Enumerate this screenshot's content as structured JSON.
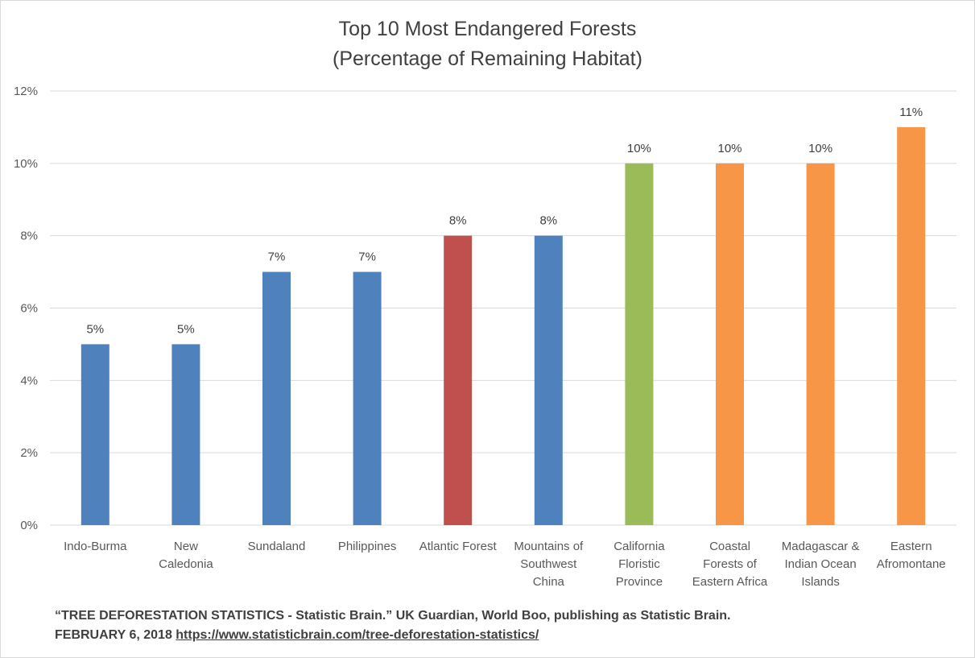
{
  "chart_data": {
    "type": "bar",
    "title": "Top 10 Most Endangered Forests",
    "subtitle": "(Percentage of Remaining Habitat)",
    "categories": [
      [
        "Indo-Burma"
      ],
      [
        "New",
        "Caledonia"
      ],
      [
        "Sundaland"
      ],
      [
        "Philippines"
      ],
      [
        "Atlantic Forest"
      ],
      [
        "Mountains of",
        "Southwest",
        "China"
      ],
      [
        "California",
        "Floristic",
        "Province"
      ],
      [
        "Coastal",
        "Forests of",
        "Eastern Africa"
      ],
      [
        "Madagascar &",
        "Indian Ocean",
        "Islands"
      ],
      [
        "Eastern",
        "Afromontane"
      ]
    ],
    "values": [
      5,
      5,
      7,
      7,
      8,
      8,
      10,
      10,
      10,
      11
    ],
    "data_labels": [
      "5%",
      "5%",
      "7%",
      "7%",
      "8%",
      "8%",
      "10%",
      "10%",
      "10%",
      "11%"
    ],
    "bar_colors": [
      "#4f81bd",
      "#4f81bd",
      "#4f81bd",
      "#4f81bd",
      "#c0504d",
      "#4f81bd",
      "#9bbb59",
      "#f79646",
      "#f79646",
      "#f79646"
    ],
    "ylim": [
      0,
      12
    ],
    "yticks": [
      0,
      2,
      4,
      6,
      8,
      10,
      12
    ],
    "ytick_labels": [
      "0%",
      "2%",
      "4%",
      "6%",
      "8%",
      "10%",
      "12%"
    ],
    "grid": true,
    "xlabel": "",
    "ylabel": ""
  },
  "source": {
    "line1": "“TREE DEFORESTATION STATISTICS -  Statistic Brain.” UK Guardian, World Boo, publishing as Statistic Brain.",
    "line2_prefix": "FEBRUARY 6, 2018 ",
    "link": "https://www.statisticbrain.com/tree-deforestation-statistics/"
  }
}
